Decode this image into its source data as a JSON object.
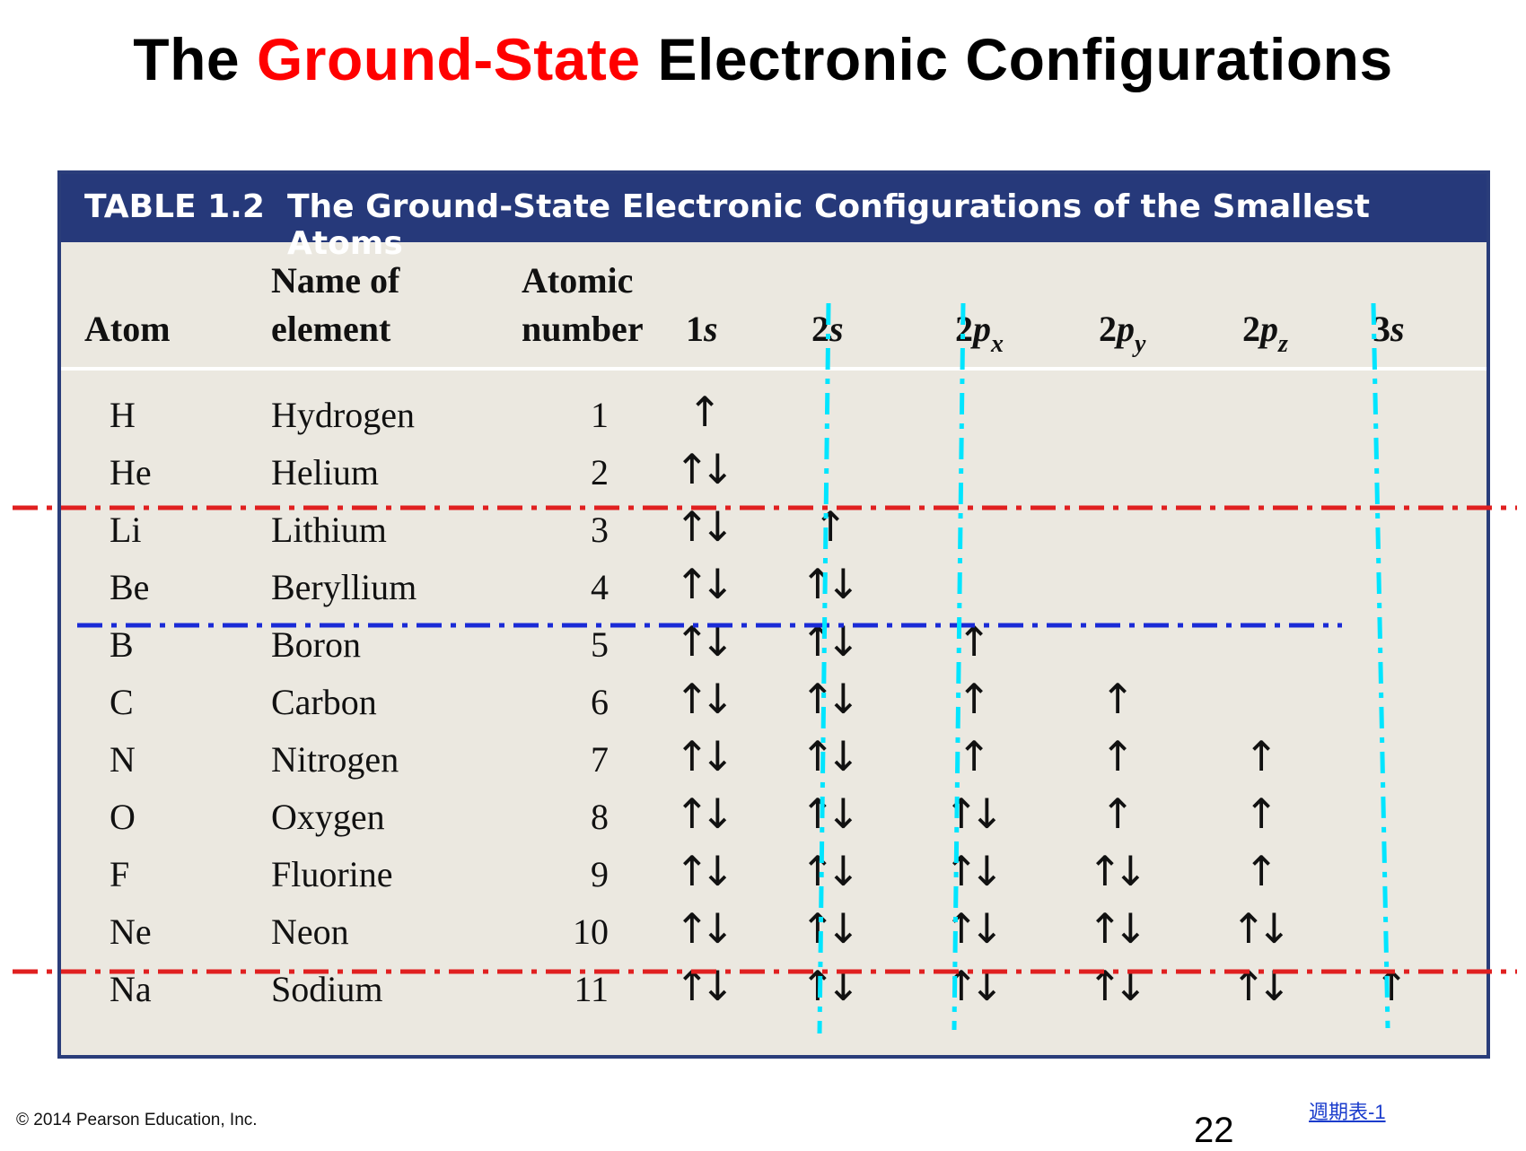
{
  "slide": {
    "title_prefix": "The ",
    "title_accent": "Ground-State",
    "title_suffix": " Electronic Configurations",
    "accent_color": "#ff0000"
  },
  "table": {
    "label": "TABLE 1.2",
    "caption": "The Ground-State Electronic Configurations of the Smallest Atoms",
    "banner_color": "#26397a",
    "headers": {
      "atom": "Atom",
      "name_line1": "Name of",
      "name_line2": "element",
      "number_line1": "Atomic",
      "number_line2": "number",
      "orbitals": [
        {
          "prefix": "1",
          "letter": "s",
          "sub": ""
        },
        {
          "prefix": "2",
          "letter": "s",
          "sub": ""
        },
        {
          "prefix": "2",
          "letter": "p",
          "sub": "x"
        },
        {
          "prefix": "2",
          "letter": "p",
          "sub": "y"
        },
        {
          "prefix": "2",
          "letter": "p",
          "sub": "z"
        },
        {
          "prefix": "3",
          "letter": "s",
          "sub": ""
        }
      ]
    },
    "rows": [
      {
        "atom": "H",
        "name": "Hydrogen",
        "number": "1",
        "orbitals": [
          "↑",
          "",
          "",
          "",
          "",
          ""
        ]
      },
      {
        "atom": "He",
        "name": "Helium",
        "number": "2",
        "orbitals": [
          "↑↓",
          "",
          "",
          "",
          "",
          ""
        ]
      },
      {
        "atom": "Li",
        "name": "Lithium",
        "number": "3",
        "orbitals": [
          "↑↓",
          "↑",
          "",
          "",
          "",
          ""
        ]
      },
      {
        "atom": "Be",
        "name": "Beryllium",
        "number": "4",
        "orbitals": [
          "↑↓",
          "↑↓",
          "",
          "",
          "",
          ""
        ]
      },
      {
        "atom": "B",
        "name": "Boron",
        "number": "5",
        "orbitals": [
          "↑↓",
          "↑↓",
          "↑",
          "",
          "",
          ""
        ]
      },
      {
        "atom": "C",
        "name": "Carbon",
        "number": "6",
        "orbitals": [
          "↑↓",
          "↑↓",
          "↑",
          "↑",
          "",
          ""
        ]
      },
      {
        "atom": "N",
        "name": "Nitrogen",
        "number": "7",
        "orbitals": [
          "↑↓",
          "↑↓",
          "↑",
          "↑",
          "↑",
          ""
        ]
      },
      {
        "atom": "O",
        "name": "Oxygen",
        "number": "8",
        "orbitals": [
          "↑↓",
          "↑↓",
          "↑↓",
          "↑",
          "↑",
          ""
        ]
      },
      {
        "atom": "F",
        "name": "Fluorine",
        "number": "9",
        "orbitals": [
          "↑↓",
          "↑↓",
          "↑↓",
          "↑↓",
          "↑",
          ""
        ]
      },
      {
        "atom": "Ne",
        "name": "Neon",
        "number": "10",
        "orbitals": [
          "↑↓",
          "↑↓",
          "↑↓",
          "↑↓",
          "↑↓",
          ""
        ]
      },
      {
        "atom": "Na",
        "name": "Sodium",
        "number": "11",
        "orbitals": [
          "↑↓",
          "↑↓",
          "↑↓",
          "↑↓",
          "↑↓",
          "↑"
        ]
      }
    ]
  },
  "annotations": {
    "red_color": "#e02020",
    "blue_color": "#1a2bd6",
    "cyan_color": "#00e5ff"
  },
  "footer": {
    "copyright": "© 2014 Pearson Education, Inc.",
    "page_number": "22",
    "link_text": "週期表-1"
  }
}
